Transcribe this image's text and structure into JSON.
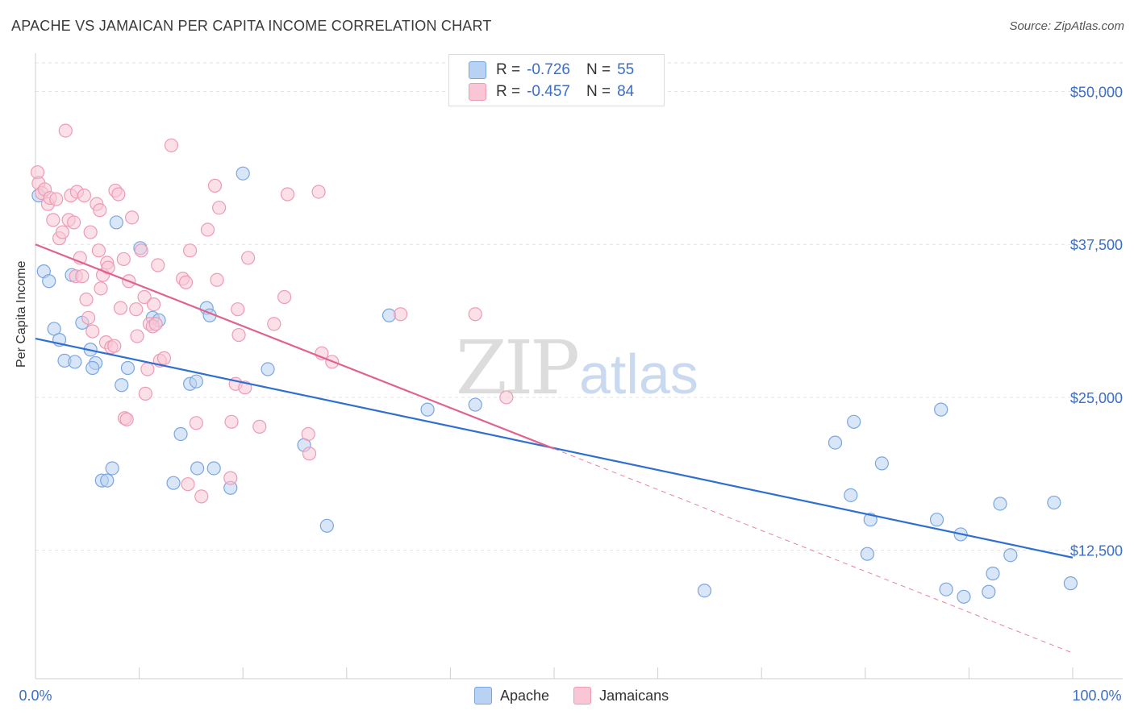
{
  "title": "APACHE VS JAMAICAN PER CAPITA INCOME CORRELATION CHART",
  "source": "Source: ZipAtlas.com",
  "watermark": {
    "zip": "ZIP",
    "atlas": "atlas"
  },
  "legend": {
    "series1": {
      "name": "Apache",
      "r_label": "R =",
      "r": "-0.726",
      "n_label": "N =",
      "n": "55"
    },
    "series2": {
      "name": "Jamaicans",
      "r_label": "R =",
      "r": "-0.457",
      "n_label": "N =",
      "n": "84"
    }
  },
  "colors": {
    "apache_fill": "#b9d2f3",
    "apache_stroke": "#7aa6e0",
    "apache_line": "#2f6fd0",
    "jamaican_fill": "#f9c6d6",
    "jamaican_stroke": "#ee9ab5",
    "jamaican_line": "#e0628f",
    "axis_text": "#3a6ec8",
    "grid": "#e3e3e3"
  },
  "chart_data": {
    "type": "scatter",
    "title": "APACHE VS JAMAICAN PER CAPITA INCOME CORRELATION CHART",
    "xlabel": "",
    "ylabel": "Per Capita Income",
    "xlim": [
      0,
      100
    ],
    "ylim": [
      2000,
      53000
    ],
    "x_tick_labels": [
      "0.0%",
      "100.0%"
    ],
    "y_ticks": [
      12500,
      25000,
      37500,
      50000
    ],
    "y_tick_labels": [
      "$12,500",
      "$25,000",
      "$37,500",
      "$50,000"
    ],
    "grid": true,
    "legend_position": "top-center",
    "series": [
      {
        "name": "Apache",
        "points": [
          [
            0.3,
            41.5
          ],
          [
            0.8,
            35.3
          ],
          [
            1.3,
            34.5
          ],
          [
            1.8,
            30.6
          ],
          [
            2.3,
            29.7
          ],
          [
            2.8,
            28.0
          ],
          [
            3.5,
            35.0
          ],
          [
            3.8,
            27.9
          ],
          [
            4.5,
            31.1
          ],
          [
            5.3,
            28.9
          ],
          [
            5.8,
            27.8
          ],
          [
            5.5,
            27.4
          ],
          [
            6.4,
            18.2
          ],
          [
            6.9,
            18.2
          ],
          [
            7.4,
            19.2
          ],
          [
            7.8,
            39.3
          ],
          [
            8.3,
            26.0
          ],
          [
            8.9,
            27.4
          ],
          [
            10.1,
            37.2
          ],
          [
            11.3,
            31.5
          ],
          [
            11.9,
            31.3
          ],
          [
            13.3,
            18.0
          ],
          [
            14.0,
            22.0
          ],
          [
            14.9,
            26.1
          ],
          [
            15.5,
            26.3
          ],
          [
            15.6,
            19.2
          ],
          [
            16.5,
            32.3
          ],
          [
            16.8,
            31.7
          ],
          [
            17.2,
            19.2
          ],
          [
            18.8,
            17.6
          ],
          [
            20.0,
            43.3
          ],
          [
            22.4,
            27.3
          ],
          [
            25.9,
            21.1
          ],
          [
            28.1,
            14.5
          ],
          [
            34.1,
            31.7
          ],
          [
            37.8,
            24.0
          ],
          [
            42.4,
            24.4
          ],
          [
            64.5,
            9.2
          ],
          [
            77.1,
            21.3
          ],
          [
            78.6,
            17.0
          ],
          [
            78.9,
            23.0
          ],
          [
            80.2,
            12.2
          ],
          [
            80.5,
            15.0
          ],
          [
            81.6,
            19.6
          ],
          [
            87.3,
            24.0
          ],
          [
            86.9,
            15.0
          ],
          [
            87.8,
            9.3
          ],
          [
            89.2,
            13.8
          ],
          [
            89.5,
            8.7
          ],
          [
            91.9,
            9.1
          ],
          [
            92.3,
            10.6
          ],
          [
            93.0,
            16.3
          ],
          [
            94.0,
            12.1
          ],
          [
            98.2,
            16.4
          ],
          [
            99.8,
            9.8
          ]
        ]
      },
      {
        "name": "Jamaicans",
        "points": [
          [
            0.2,
            43.4
          ],
          [
            0.3,
            42.5
          ],
          [
            0.6,
            41.7
          ],
          [
            0.9,
            42.0
          ],
          [
            1.2,
            40.8
          ],
          [
            1.4,
            41.3
          ],
          [
            1.7,
            39.5
          ],
          [
            2.0,
            41.2
          ],
          [
            2.3,
            38.0
          ],
          [
            2.6,
            38.5
          ],
          [
            2.9,
            46.8
          ],
          [
            3.2,
            39.5
          ],
          [
            3.4,
            41.5
          ],
          [
            3.7,
            39.3
          ],
          [
            3.9,
            34.9
          ],
          [
            4.0,
            41.8
          ],
          [
            4.3,
            36.4
          ],
          [
            4.5,
            34.9
          ],
          [
            4.7,
            41.5
          ],
          [
            4.9,
            33.0
          ],
          [
            5.1,
            31.5
          ],
          [
            5.3,
            38.5
          ],
          [
            5.5,
            30.4
          ],
          [
            5.9,
            40.8
          ],
          [
            6.1,
            37.0
          ],
          [
            6.2,
            40.3
          ],
          [
            6.3,
            33.9
          ],
          [
            6.5,
            35.0
          ],
          [
            6.8,
            29.5
          ],
          [
            6.9,
            36.0
          ],
          [
            7.0,
            35.6
          ],
          [
            7.3,
            29.1
          ],
          [
            7.6,
            29.2
          ],
          [
            7.7,
            41.9
          ],
          [
            8.0,
            41.6
          ],
          [
            8.2,
            32.3
          ],
          [
            8.5,
            36.3
          ],
          [
            8.6,
            23.3
          ],
          [
            8.8,
            23.2
          ],
          [
            9.0,
            34.5
          ],
          [
            9.3,
            39.7
          ],
          [
            9.7,
            32.2
          ],
          [
            9.8,
            30.0
          ],
          [
            10.2,
            37.0
          ],
          [
            10.5,
            33.2
          ],
          [
            10.6,
            25.3
          ],
          [
            10.8,
            27.3
          ],
          [
            11.0,
            31.0
          ],
          [
            11.3,
            30.8
          ],
          [
            11.4,
            32.6
          ],
          [
            11.6,
            31.0
          ],
          [
            11.8,
            35.8
          ],
          [
            12.0,
            28.0
          ],
          [
            12.4,
            28.2
          ],
          [
            13.1,
            45.6
          ],
          [
            14.2,
            34.7
          ],
          [
            14.5,
            34.4
          ],
          [
            14.7,
            17.9
          ],
          [
            14.9,
            37.0
          ],
          [
            15.5,
            22.9
          ],
          [
            16.0,
            16.9
          ],
          [
            16.6,
            38.7
          ],
          [
            17.3,
            42.3
          ],
          [
            17.5,
            34.6
          ],
          [
            17.7,
            40.5
          ],
          [
            18.8,
            18.4
          ],
          [
            18.9,
            23.0
          ],
          [
            19.3,
            26.1
          ],
          [
            19.5,
            32.2
          ],
          [
            19.6,
            30.1
          ],
          [
            20.2,
            25.8
          ],
          [
            20.5,
            36.4
          ],
          [
            21.6,
            22.6
          ],
          [
            23.0,
            31.0
          ],
          [
            24.0,
            33.2
          ],
          [
            24.3,
            41.6
          ],
          [
            26.3,
            22.0
          ],
          [
            26.4,
            20.4
          ],
          [
            27.3,
            41.8
          ],
          [
            27.6,
            28.6
          ],
          [
            28.6,
            27.9
          ],
          [
            35.2,
            31.8
          ],
          [
            42.4,
            31.8
          ],
          [
            45.4,
            25.0
          ]
        ]
      }
    ],
    "trend_lines": [
      {
        "name": "Apache",
        "from": [
          0,
          29.8
        ],
        "to": [
          100,
          11.9
        ]
      },
      {
        "name": "Jamaicans",
        "solid_from": [
          0,
          37.5
        ],
        "solid_to": [
          50,
          20.8
        ],
        "dashed_to": [
          100,
          4.1
        ]
      }
    ]
  }
}
